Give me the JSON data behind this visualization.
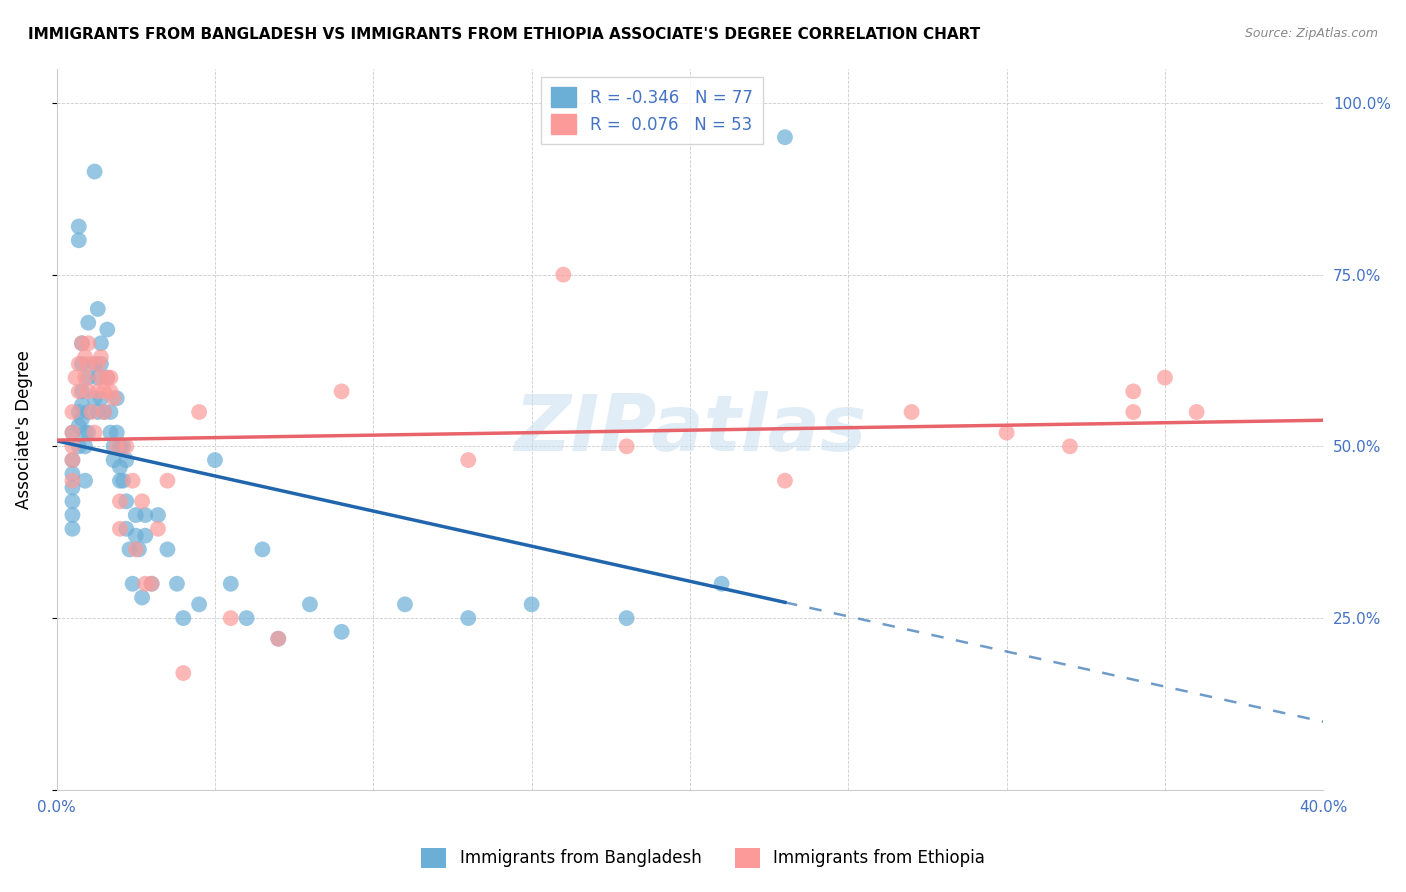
{
  "title": "IMMIGRANTS FROM BANGLADESH VS IMMIGRANTS FROM ETHIOPIA ASSOCIATE'S DEGREE CORRELATION CHART",
  "source": "Source: ZipAtlas.com",
  "ylabel": "Associate's Degree",
  "ylabel_right_ticks": [
    "100.0%",
    "75.0%",
    "50.0%",
    "25.0%"
  ],
  "ylabel_right_vals": [
    1.0,
    0.75,
    0.5,
    0.25
  ],
  "color_bangladesh": "#6baed6",
  "color_ethiopia": "#fb9a99",
  "color_trend_bangladesh": "#2166ac",
  "color_trend_ethiopia": "#e8636a",
  "watermark": "ZIPatlas",
  "xlim": [
    0.0,
    0.4
  ],
  "ylim": [
    0.0,
    1.05
  ],
  "bangladesh_x": [
    0.005,
    0.005,
    0.005,
    0.005,
    0.005,
    0.005,
    0.005,
    0.007,
    0.007,
    0.007,
    0.007,
    0.007,
    0.008,
    0.008,
    0.008,
    0.008,
    0.008,
    0.009,
    0.009,
    0.009,
    0.01,
    0.01,
    0.01,
    0.01,
    0.012,
    0.012,
    0.012,
    0.013,
    0.013,
    0.013,
    0.014,
    0.014,
    0.014,
    0.015,
    0.016,
    0.016,
    0.017,
    0.017,
    0.018,
    0.018,
    0.019,
    0.019,
    0.02,
    0.02,
    0.02,
    0.021,
    0.021,
    0.022,
    0.022,
    0.022,
    0.023,
    0.024,
    0.025,
    0.025,
    0.026,
    0.027,
    0.028,
    0.028,
    0.03,
    0.032,
    0.035,
    0.038,
    0.04,
    0.045,
    0.05,
    0.055,
    0.06,
    0.065,
    0.07,
    0.08,
    0.09,
    0.11,
    0.13,
    0.15,
    0.18,
    0.21,
    0.23
  ],
  "bangladesh_y": [
    0.52,
    0.48,
    0.46,
    0.44,
    0.42,
    0.4,
    0.38,
    0.82,
    0.8,
    0.55,
    0.53,
    0.5,
    0.65,
    0.62,
    0.58,
    0.56,
    0.54,
    0.52,
    0.5,
    0.45,
    0.68,
    0.6,
    0.55,
    0.52,
    0.9,
    0.62,
    0.57,
    0.7,
    0.6,
    0.55,
    0.65,
    0.62,
    0.57,
    0.55,
    0.67,
    0.6,
    0.55,
    0.52,
    0.5,
    0.48,
    0.57,
    0.52,
    0.5,
    0.47,
    0.45,
    0.5,
    0.45,
    0.48,
    0.42,
    0.38,
    0.35,
    0.3,
    0.4,
    0.37,
    0.35,
    0.28,
    0.4,
    0.37,
    0.3,
    0.4,
    0.35,
    0.3,
    0.25,
    0.27,
    0.48,
    0.3,
    0.25,
    0.35,
    0.22,
    0.27,
    0.23,
    0.27,
    0.25,
    0.27,
    0.25,
    0.3,
    0.95
  ],
  "ethiopia_x": [
    0.005,
    0.005,
    0.005,
    0.005,
    0.005,
    0.006,
    0.007,
    0.007,
    0.008,
    0.009,
    0.009,
    0.01,
    0.01,
    0.01,
    0.011,
    0.012,
    0.013,
    0.013,
    0.014,
    0.014,
    0.015,
    0.015,
    0.016,
    0.017,
    0.017,
    0.018,
    0.019,
    0.02,
    0.02,
    0.022,
    0.024,
    0.025,
    0.027,
    0.028,
    0.03,
    0.032,
    0.035,
    0.04,
    0.045,
    0.055,
    0.07,
    0.09,
    0.13,
    0.16,
    0.18,
    0.23,
    0.27,
    0.3,
    0.32,
    0.34,
    0.34,
    0.35,
    0.36
  ],
  "ethiopia_y": [
    0.55,
    0.52,
    0.5,
    0.48,
    0.45,
    0.6,
    0.62,
    0.58,
    0.65,
    0.63,
    0.6,
    0.65,
    0.62,
    0.58,
    0.55,
    0.52,
    0.62,
    0.58,
    0.63,
    0.6,
    0.58,
    0.55,
    0.6,
    0.6,
    0.58,
    0.57,
    0.5,
    0.42,
    0.38,
    0.5,
    0.45,
    0.35,
    0.42,
    0.3,
    0.3,
    0.38,
    0.45,
    0.17,
    0.55,
    0.25,
    0.22,
    0.58,
    0.48,
    0.75,
    0.5,
    0.45,
    0.55,
    0.52,
    0.5,
    0.55,
    0.58,
    0.6,
    0.55
  ]
}
